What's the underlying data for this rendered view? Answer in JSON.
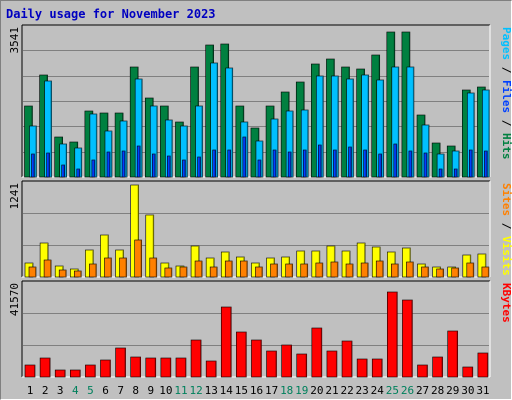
{
  "page": {
    "title": "Daily usage for November 2023"
  },
  "colors": {
    "hits": "#008040",
    "files": "#0040ff",
    "pages": "#00c0ff",
    "visits": "#ffff00",
    "sites": "#ff8000",
    "kbytes": "#ff0000",
    "weekend_label": "#00805c",
    "weekday_label": "#000000"
  },
  "chart_data": [
    {
      "type": "bar",
      "panel": "traffic",
      "x": [
        "1",
        "2",
        "3",
        "4",
        "5",
        "6",
        "7",
        "8",
        "9",
        "10",
        "11",
        "12",
        "13",
        "14",
        "15",
        "16",
        "17",
        "18",
        "19",
        "20",
        "21",
        "22",
        "23",
        "24",
        "25",
        "26",
        "27",
        "28",
        "29",
        "30",
        "31"
      ],
      "weekend_days": [
        "4",
        "5",
        "11",
        "12",
        "18",
        "19",
        "25",
        "26"
      ],
      "ymax_label": "3541",
      "ylim": [
        0,
        3541
      ],
      "legend": {
        "parts": [
          "Pages",
          "Files",
          "Hits"
        ],
        "separator": " / "
      },
      "series": [
        {
          "name": "Hits",
          "values": [
            1690,
            2450,
            950,
            830,
            1570,
            1520,
            1520,
            2640,
            1880,
            1690,
            1320,
            2640,
            3150,
            3190,
            1690,
            1170,
            1690,
            2030,
            2270,
            2710,
            2820,
            2630,
            2590,
            2910,
            3470,
            3470,
            1490,
            820,
            740,
            2070,
            2150
          ]
        },
        {
          "name": "Files",
          "values": [
            560,
            580,
            280,
            200,
            400,
            600,
            620,
            750,
            550,
            500,
            400,
            470,
            640,
            640,
            950,
            400,
            650,
            600,
            650,
            760,
            650,
            720,
            650,
            550,
            780,
            620,
            580,
            200,
            200,
            640,
            630
          ]
        },
        {
          "name": "Pages",
          "values": [
            1210,
            2300,
            800,
            700,
            1500,
            1100,
            1350,
            2340,
            1700,
            1370,
            1210,
            1700,
            2720,
            2600,
            1310,
            870,
            1380,
            1580,
            1600,
            2420,
            2420,
            2340,
            2440,
            2320,
            2640,
            2640,
            1250,
            550,
            630,
            2000,
            2070
          ]
        }
      ]
    },
    {
      "type": "bar",
      "panel": "visitors",
      "x": [
        "1",
        "2",
        "3",
        "4",
        "5",
        "6",
        "7",
        "8",
        "9",
        "10",
        "11",
        "12",
        "13",
        "14",
        "15",
        "16",
        "17",
        "18",
        "19",
        "20",
        "21",
        "22",
        "23",
        "24",
        "25",
        "26",
        "27",
        "28",
        "29",
        "30",
        "31"
      ],
      "ymax_label": "1241",
      "ylim": [
        0,
        1241
      ],
      "legend": {
        "parts": [
          "Sites",
          "Visits"
        ],
        "separator": " / "
      },
      "series": [
        {
          "name": "Visits",
          "values": [
            190,
            460,
            150,
            110,
            370,
            560,
            360,
            1241,
            830,
            190,
            150,
            420,
            260,
            340,
            270,
            190,
            260,
            270,
            350,
            350,
            420,
            350,
            460,
            400,
            340,
            390,
            170,
            140,
            140,
            300,
            310
          ]
        },
        {
          "name": "Sites",
          "values": [
            130,
            230,
            100,
            80,
            180,
            250,
            250,
            500,
            260,
            120,
            130,
            220,
            140,
            220,
            220,
            130,
            180,
            180,
            180,
            190,
            200,
            180,
            190,
            220,
            180,
            200,
            140,
            110,
            120,
            190,
            140
          ]
        }
      ]
    },
    {
      "type": "bar",
      "panel": "kbytes",
      "x": [
        "1",
        "2",
        "3",
        "4",
        "5",
        "6",
        "7",
        "8",
        "9",
        "10",
        "11",
        "12",
        "13",
        "14",
        "15",
        "16",
        "17",
        "18",
        "19",
        "20",
        "21",
        "22",
        "23",
        "24",
        "25",
        "26",
        "27",
        "28",
        "29",
        "30",
        "31"
      ],
      "ymax_label": "41570",
      "ylim": [
        0,
        41570
      ],
      "legend": {
        "parts": [
          "KBytes"
        ],
        "separator": ""
      },
      "series": [
        {
          "name": "KBytes",
          "values": [
            5300,
            8800,
            3000,
            3100,
            5600,
            7500,
            13000,
            9100,
            8600,
            8700,
            8700,
            16500,
            7400,
            31600,
            20200,
            16800,
            11900,
            14600,
            10400,
            22300,
            11800,
            16300,
            8100,
            8100,
            38300,
            34800,
            5600,
            9000,
            20600,
            4700,
            11000
          ]
        }
      ]
    }
  ]
}
